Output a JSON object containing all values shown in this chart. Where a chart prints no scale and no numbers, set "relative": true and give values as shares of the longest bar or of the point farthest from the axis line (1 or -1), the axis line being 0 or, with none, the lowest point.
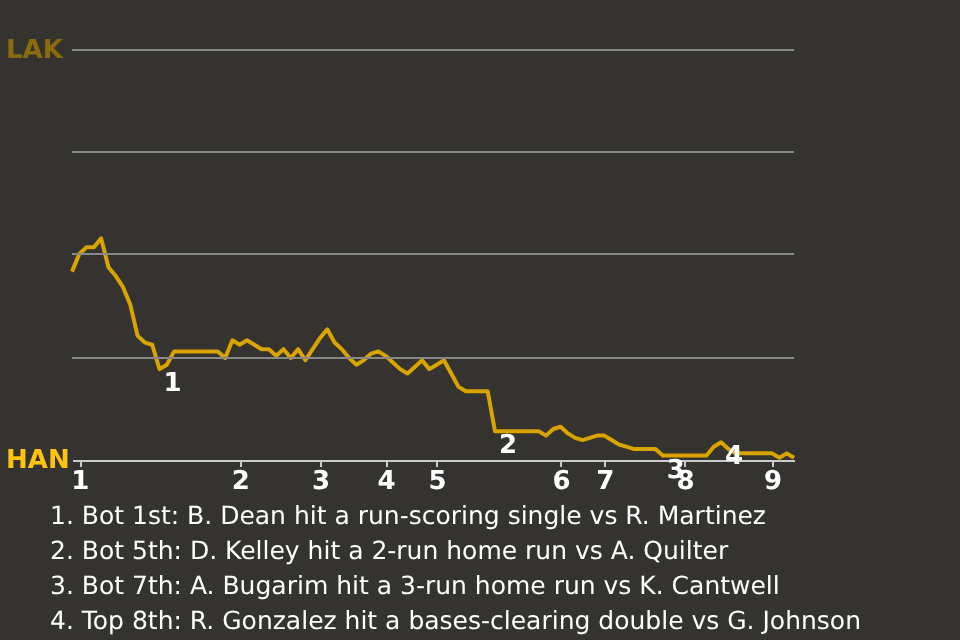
{
  "chart_data": {
    "type": "line",
    "categories": [
      null,
      "1",
      null,
      null,
      null,
      null,
      null,
      null,
      null,
      null,
      null,
      null,
      null,
      null,
      null,
      null,
      null,
      null,
      null,
      null,
      null,
      null,
      null,
      "2",
      null,
      null,
      null,
      null,
      null,
      null,
      null,
      null,
      null,
      null,
      "3",
      null,
      null,
      null,
      null,
      null,
      null,
      null,
      null,
      "4",
      null,
      null,
      null,
      null,
      null,
      null,
      "5",
      null,
      null,
      null,
      null,
      null,
      null,
      null,
      null,
      null,
      null,
      null,
      null,
      null,
      null,
      null,
      null,
      "6",
      null,
      null,
      null,
      null,
      null,
      "7",
      null,
      null,
      null,
      null,
      null,
      null,
      null,
      null,
      null,
      null,
      "8",
      null,
      null,
      null,
      null,
      null,
      null,
      null,
      null,
      null,
      null,
      null,
      "9",
      null,
      null,
      null
    ],
    "relative": true,
    "series": [
      {
        "color": "#d9a400",
        "values": [
          0.85,
          0.93,
          0.96,
          0.96,
          1.0,
          0.87,
          0.83,
          0.78,
          0.7,
          0.56,
          0.53,
          0.52,
          0.41,
          0.43,
          0.49,
          0.49,
          0.49,
          0.49,
          0.49,
          0.49,
          0.49,
          0.46,
          0.54,
          0.52,
          0.54,
          0.52,
          0.5,
          0.5,
          0.47,
          0.5,
          0.46,
          0.5,
          0.45,
          0.5,
          0.55,
          0.59,
          0.53,
          0.5,
          0.46,
          0.43,
          0.45,
          0.48,
          0.49,
          0.47,
          0.44,
          0.41,
          0.39,
          0.42,
          0.45,
          0.41,
          0.43,
          0.45,
          0.39,
          0.33,
          0.31,
          0.31,
          0.31,
          0.31,
          0.13,
          0.13,
          0.13,
          0.13,
          0.13,
          0.13,
          0.13,
          0.11,
          0.14,
          0.15,
          0.12,
          0.1,
          0.09,
          0.1,
          0.11,
          0.11,
          0.09,
          0.07,
          0.06,
          0.05,
          0.05,
          0.05,
          0.05,
          0.02,
          0.02,
          0.02,
          0.02,
          0.02,
          0.02,
          0.02,
          0.06,
          0.08,
          0.05,
          0.03,
          0.03,
          0.03,
          0.03,
          0.03,
          0.03,
          0.01,
          0.03,
          0.01
        ],
        "name": null
      }
    ],
    "line_style": "solid",
    "ref_lines": [
      {
        "axis": "y",
        "value": 0.46,
        "color": "#888888"
      },
      {
        "axis": "y",
        "value": 0.93,
        "color": "#888888"
      },
      {
        "axis": "y",
        "value": 1.39,
        "color": "#888888"
      },
      {
        "axis": "y",
        "value": 1.85,
        "color": "#888888"
      }
    ],
    "annotations": [
      {
        "text": "1",
        "y": 0.41
      },
      {
        "text": "2",
        "y": 0.13
      },
      {
        "text": "3",
        "y": 0.02
      },
      {
        "text": "4",
        "y": 0.08
      },
      "LAK",
      "HAN",
      "1. Bot 1st: B. Dean hit a run-scoring single vs R. Martinez",
      "2. Bot 5th: D. Kelley hit a 2-run home run vs A. Quilter",
      "3. Bot 7th: A. Bugarim hit a 3-run home run vs K. Cantwell",
      "4. Top 8th: R. Gonzalez hit a bases-clearing double vs G. Johnson"
    ]
  }
}
